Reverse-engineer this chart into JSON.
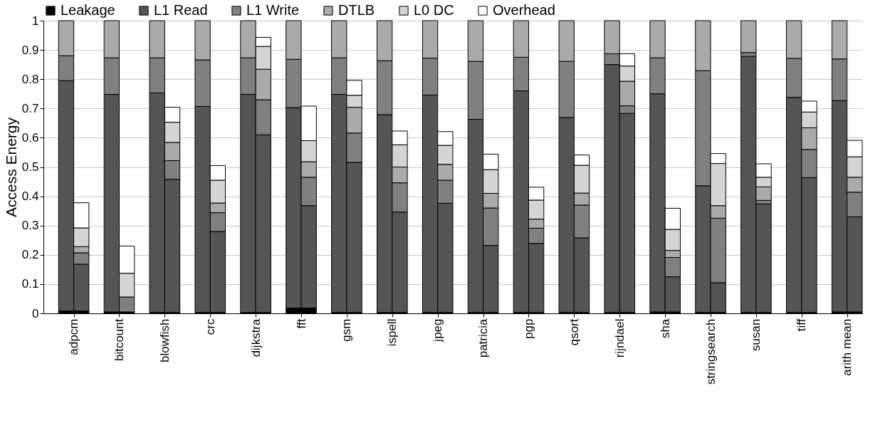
{
  "chart_data": {
    "type": "bar",
    "stacked": true,
    "ylabel": "Access Energy",
    "ylim": [
      0,
      1
    ],
    "yticks": [
      0,
      0.1,
      0.2,
      0.3,
      0.4,
      0.5,
      0.6,
      0.7,
      0.8,
      0.9,
      1
    ],
    "grid": "y",
    "legend": "top",
    "categories": [
      null,
      "adpcm",
      null,
      null,
      "bitcount",
      null,
      null,
      "blowfish",
      null,
      null,
      "crc",
      null,
      null,
      "dijkstra",
      null,
      null,
      "fft",
      null,
      null,
      "gsm",
      null,
      null,
      "ispell",
      null,
      null,
      "jpeg",
      null,
      null,
      "patricia",
      null,
      null,
      "pgp",
      null,
      null,
      "qsort",
      null,
      null,
      "rijndael",
      null,
      null,
      "sha",
      null,
      null,
      "stringsearch",
      null,
      null,
      "susan",
      null,
      null,
      "tiff",
      null,
      null,
      "arith mean",
      null
    ],
    "series": [
      {
        "name": "Leakage",
        "color": "#000000",
        "values": [
          null,
          0.008,
          0.008,
          null,
          0.005,
          0.005,
          null,
          0.003,
          0.003,
          null,
          0.003,
          0.003,
          null,
          0.003,
          0.003,
          null,
          0.018,
          0.018,
          null,
          0.003,
          0.003,
          null,
          0.003,
          0.003,
          null,
          0.003,
          0.003,
          null,
          0.003,
          0.003,
          null,
          0.003,
          0.003,
          null,
          0.003,
          0.003,
          null,
          0.003,
          0.003,
          null,
          0.005,
          0.005,
          null,
          0.003,
          0.003,
          null,
          0.003,
          0.003,
          null,
          0.003,
          0.003,
          null,
          0.005,
          0.005
        ]
      },
      {
        "name": "L1 Read",
        "color": "#555555",
        "values": [
          null,
          0.787,
          0.16,
          null,
          0.743,
          null,
          null,
          0.75,
          0.455,
          null,
          0.704,
          0.277,
          null,
          0.745,
          0.607,
          null,
          0.685,
          0.35,
          null,
          0.745,
          0.513,
          null,
          0.676,
          0.343,
          null,
          0.743,
          0.373,
          null,
          0.66,
          0.229,
          null,
          0.757,
          0.236,
          null,
          0.666,
          0.255,
          null,
          0.847,
          0.68,
          null,
          0.745,
          0.12,
          null,
          0.433,
          0.102,
          null,
          0.875,
          0.371,
          null,
          0.735,
          0.461,
          null,
          0.722,
          0.325
        ]
      },
      {
        "name": "L1 Write",
        "color": "#808080",
        "values": [
          null,
          0.085,
          0.039,
          null,
          0.125,
          0.051,
          null,
          0.12,
          0.064,
          null,
          0.159,
          0.064,
          null,
          0.125,
          0.12,
          null,
          0.165,
          0.097,
          null,
          0.125,
          0.1,
          null,
          0.184,
          0.1,
          null,
          0.126,
          0.079,
          null,
          0.198,
          0.128,
          null,
          0.115,
          0.052,
          null,
          0.192,
          0.112,
          null,
          0.037,
          0.026,
          null,
          0.123,
          0.066,
          null,
          0.393,
          0.22,
          null,
          0.013,
          0.012,
          null,
          0.133,
          0.096,
          null,
          0.142,
          0.084
        ]
      },
      {
        "name": "DTLB",
        "color": "#aaaaaa",
        "values": [
          null,
          0.12,
          0.021,
          null,
          0.127,
          null,
          null,
          0.127,
          0.062,
          null,
          0.134,
          0.033,
          null,
          0.127,
          0.104,
          null,
          0.132,
          0.053,
          null,
          0.127,
          0.088,
          null,
          0.137,
          0.054,
          null,
          0.128,
          0.054,
          null,
          0.139,
          0.05,
          null,
          0.125,
          0.031,
          null,
          0.139,
          0.041,
          null,
          0.113,
          0.084,
          null,
          0.127,
          0.024,
          null,
          0.171,
          0.043,
          null,
          0.109,
          0.046,
          null,
          0.129,
          0.074,
          null,
          0.131,
          0.051
        ]
      },
      {
        "name": "L0 DC",
        "color": "#d4d4d4",
        "values": [
          null,
          null,
          0.064,
          null,
          null,
          0.081,
          null,
          null,
          0.069,
          null,
          null,
          0.078,
          null,
          null,
          0.078,
          null,
          null,
          0.072,
          null,
          null,
          0.041,
          null,
          null,
          0.076,
          null,
          null,
          0.065,
          null,
          null,
          0.081,
          null,
          null,
          0.065,
          null,
          null,
          0.095,
          null,
          null,
          0.052,
          null,
          null,
          0.072,
          null,
          null,
          0.144,
          null,
          null,
          0.033,
          null,
          null,
          0.054,
          null,
          null,
          0.07
        ]
      },
      {
        "name": "Overhead",
        "color": "#ffffff",
        "values": [
          null,
          null,
          0.086,
          null,
          null,
          0.093,
          null,
          null,
          0.051,
          null,
          null,
          0.05,
          null,
          null,
          0.031,
          null,
          null,
          0.118,
          null,
          null,
          0.051,
          null,
          null,
          0.047,
          null,
          null,
          0.047,
          null,
          null,
          0.053,
          null,
          null,
          0.044,
          null,
          null,
          0.035,
          null,
          null,
          0.042,
          null,
          null,
          0.072,
          null,
          null,
          0.034,
          null,
          null,
          0.046,
          null,
          null,
          0.037,
          null,
          null,
          0.056
        ]
      }
    ]
  }
}
